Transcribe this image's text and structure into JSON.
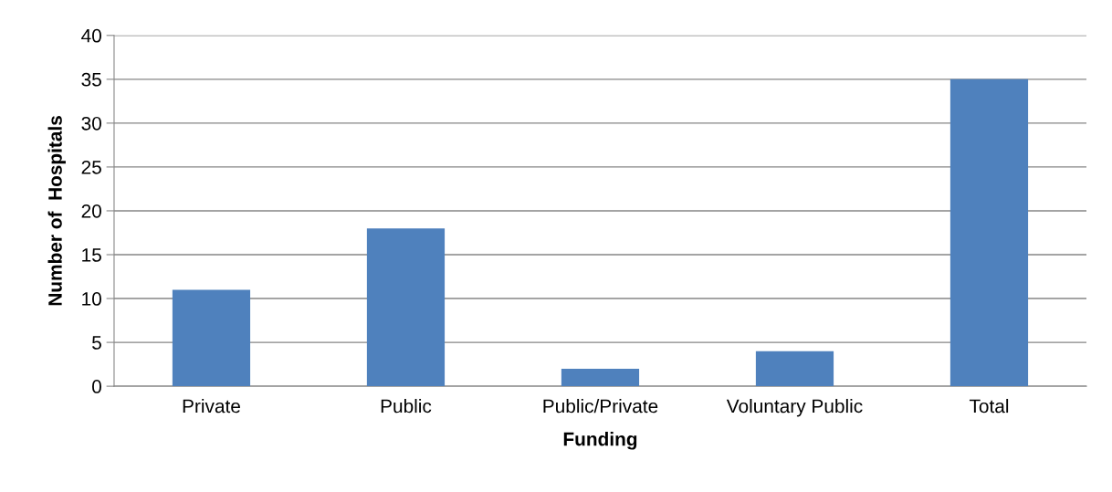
{
  "chart_data": {
    "type": "bar",
    "xlabel": "Funding",
    "ylabel": "Number of  Hospitals",
    "categories": [
      "Private",
      "Public",
      "Public/Private",
      "Voluntary Public",
      "Total"
    ],
    "values": [
      11,
      18,
      2,
      4,
      35
    ],
    "color": "#4f81bd",
    "ylim": [
      0,
      40
    ],
    "yticks": [
      0,
      5,
      10,
      15,
      20,
      25,
      30,
      35,
      40
    ],
    "grid": "y",
    "legend": false
  }
}
